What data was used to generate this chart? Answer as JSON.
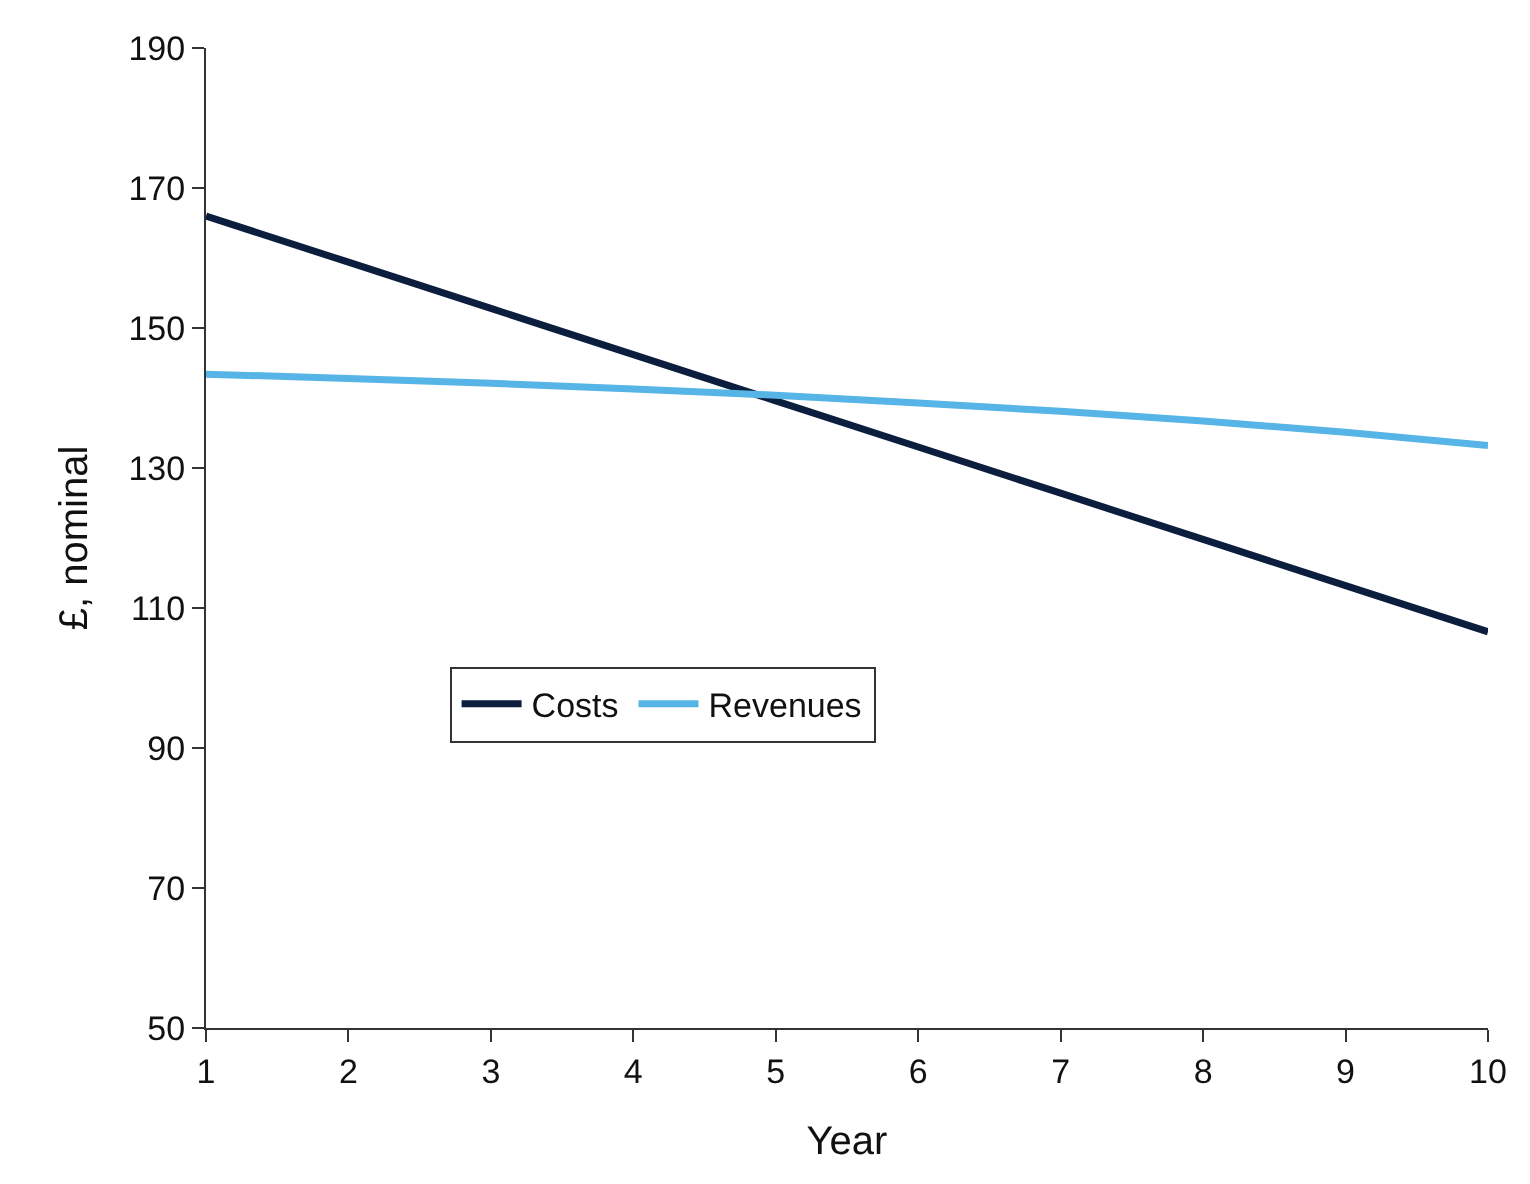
{
  "chart_data": {
    "type": "line",
    "xlabel": "Year",
    "ylabel": "£, nominal",
    "x": [
      1,
      2,
      3,
      4,
      5,
      6,
      7,
      8,
      9,
      10
    ],
    "series": [
      {
        "name": "Costs",
        "color": "#0b1e3d",
        "values": [
          166,
          159.4,
          152.8,
          146.2,
          139.6,
          133,
          126.4,
          119.8,
          113.2,
          106.6
        ]
      },
      {
        "name": "Revenues",
        "color": "#56b4e6",
        "values": [
          143.4,
          142.8,
          142.1,
          141.3,
          140.4,
          139.3,
          138.1,
          136.7,
          135.1,
          133.2
        ]
      }
    ],
    "xlim": [
      1,
      10
    ],
    "xticks": [
      1,
      2,
      3,
      4,
      5,
      6,
      7,
      8,
      9,
      10
    ],
    "ylim": [
      50,
      190
    ],
    "yticks": [
      50,
      70,
      90,
      110,
      130,
      150,
      170,
      190
    ],
    "grid": false,
    "legend": "left",
    "marker": "none",
    "line_style": "solid"
  }
}
